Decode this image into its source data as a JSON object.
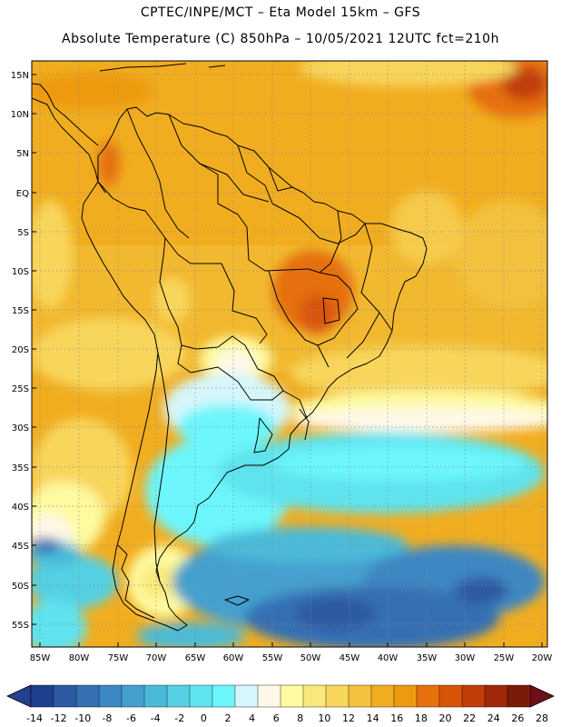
{
  "header": {
    "line1": "CPTEC/INPE/MCT –  Eta Model 15km – GFS",
    "line2": "Absolute Temperature (C) 850hPa – 10/05/2021 12UTC fct=210h"
  },
  "map": {
    "lat_labels": [
      "15N",
      "10N",
      "5N",
      "EQ",
      "5S",
      "10S",
      "15S",
      "20S",
      "25S",
      "30S",
      "35S",
      "40S",
      "45S",
      "50S",
      "55S"
    ],
    "lon_labels": [
      "85W",
      "80W",
      "75W",
      "70W",
      "65W",
      "60W",
      "55W",
      "50W",
      "45W",
      "40W",
      "35W",
      "30W",
      "25W",
      "20W"
    ]
  },
  "colorbar": {
    "labels": [
      "-14",
      "-12",
      "-10",
      "-8",
      "-6",
      "-4",
      "-2",
      "0",
      "2",
      "4",
      "6",
      "8",
      "10",
      "12",
      "14",
      "16",
      "18",
      "20",
      "22",
      "24",
      "26",
      "28"
    ],
    "colors": [
      "#1f3f8f",
      "#2d5aa3",
      "#3570b3",
      "#3d87c3",
      "#44a0cf",
      "#4bbad8",
      "#55d0e3",
      "#5fe3ee",
      "#6cf6fb",
      "#d6f6fb",
      "#fff8e8",
      "#fdfaa0",
      "#fbe87a",
      "#f8d65b",
      "#f3c13c",
      "#f1ad20",
      "#ed9a10",
      "#e6700c",
      "#d9540b",
      "#c23c0a",
      "#9e2808",
      "#7a1a08"
    ],
    "left_arrow_color": "#24418f",
    "right_arrow_color": "#6e0f1a"
  }
}
